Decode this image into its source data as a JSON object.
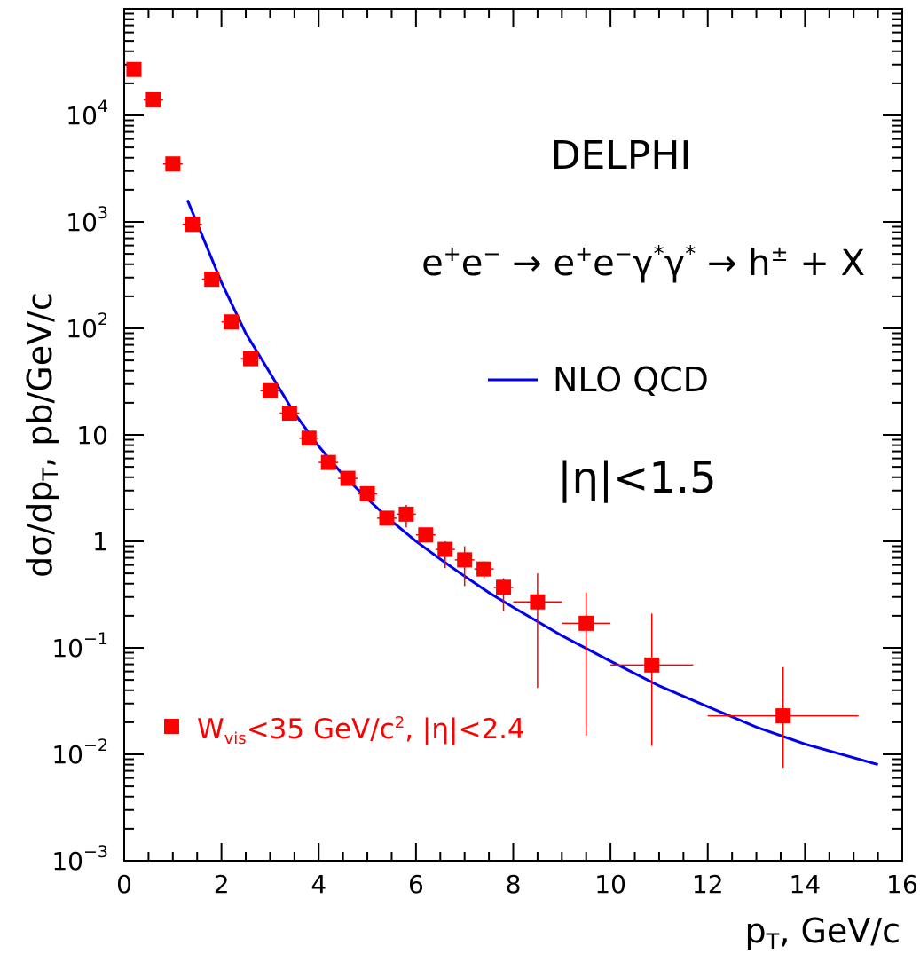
{
  "chart_data": {
    "type": "scatter",
    "title": "DELPHI",
    "process": {
      "parts": [
        {
          "t": "e",
          "s": "+"
        },
        {
          "t": "e",
          "s": "−"
        },
        {
          "t": " → "
        },
        {
          "t": "e",
          "s": "+"
        },
        {
          "t": "e",
          "s": "−"
        },
        {
          "t": "γ",
          "s": "*"
        },
        {
          "t": "γ",
          "s": "*"
        },
        {
          "t": " → h"
        },
        {
          "t": "",
          "s": "±"
        },
        {
          "t": " + X"
        }
      ]
    },
    "eta_cut": "|η|<1.5",
    "xlabel": {
      "main": "p",
      "sub": "T",
      "rest": ", GeV/c"
    },
    "ylabel": {
      "pre": "dσ/dp",
      "sub": "T",
      "rest": ", pb/GeV/c"
    },
    "xlim": [
      0,
      16
    ],
    "ylim": [
      0.001,
      100000
    ],
    "y_scale": "log",
    "x_ticks": [
      "0",
      "2",
      "4",
      "6",
      "8",
      "10",
      "12",
      "14",
      "16"
    ],
    "y_ticks": [
      {
        "value": 0.001,
        "base": "10",
        "exp": "−3"
      },
      {
        "value": 0.01,
        "base": "10",
        "exp": "−2"
      },
      {
        "value": 0.1,
        "base": "10",
        "exp": "−1"
      },
      {
        "value": 1,
        "base": "1",
        "exp": ""
      },
      {
        "value": 10,
        "base": "10",
        "exp": ""
      },
      {
        "value": 100,
        "base": "10",
        "exp": "2"
      },
      {
        "value": 1000,
        "base": "10",
        "exp": "3"
      },
      {
        "value": 10000,
        "base": "10",
        "exp": "4"
      }
    ],
    "legend": {
      "theory": "NLO QCD",
      "data": {
        "W": "W",
        "sub": "vis",
        "rest1": "<35 GeV/c",
        "sup": "2",
        "rest2": ", |η|<2.4"
      }
    },
    "series": [
      {
        "name": "data",
        "color": "#ff0000",
        "points": [
          {
            "x": 0.2,
            "y": 27000,
            "xerr": 0.1,
            "ylo": 27000,
            "yhi": 27000
          },
          {
            "x": 0.6,
            "y": 14000,
            "xerr": 0.2,
            "ylo": 14000,
            "yhi": 14000
          },
          {
            "x": 1.0,
            "y": 3500,
            "xerr": 0.2,
            "ylo": 3500,
            "yhi": 3500
          },
          {
            "x": 1.4,
            "y": 950,
            "xerr": 0.2,
            "ylo": 950,
            "yhi": 950
          },
          {
            "x": 1.8,
            "y": 290,
            "xerr": 0.2,
            "ylo": 250,
            "yhi": 330
          },
          {
            "x": 2.2,
            "y": 115,
            "xerr": 0.2,
            "ylo": 110,
            "yhi": 120
          },
          {
            "x": 2.6,
            "y": 52,
            "xerr": 0.2,
            "ylo": 50,
            "yhi": 54
          },
          {
            "x": 3.0,
            "y": 26,
            "xerr": 0.2,
            "ylo": 25,
            "yhi": 27
          },
          {
            "x": 3.4,
            "y": 16,
            "xerr": 0.2,
            "ylo": 15,
            "yhi": 17
          },
          {
            "x": 3.8,
            "y": 9.3,
            "xerr": 0.2,
            "ylo": 8.5,
            "yhi": 10
          },
          {
            "x": 4.2,
            "y": 5.5,
            "xerr": 0.2,
            "ylo": 5.0,
            "yhi": 6.0
          },
          {
            "x": 4.6,
            "y": 3.9,
            "xerr": 0.2,
            "ylo": 3.5,
            "yhi": 4.3
          },
          {
            "x": 5.0,
            "y": 2.8,
            "xerr": 0.2,
            "ylo": 2.5,
            "yhi": 3.1
          },
          {
            "x": 5.4,
            "y": 1.65,
            "xerr": 0.2,
            "ylo": 1.45,
            "yhi": 1.85
          },
          {
            "x": 5.8,
            "y": 1.8,
            "xerr": 0.2,
            "ylo": 1.35,
            "yhi": 2.2
          },
          {
            "x": 6.2,
            "y": 1.15,
            "xerr": 0.2,
            "ylo": 1.0,
            "yhi": 1.3
          },
          {
            "x": 6.6,
            "y": 0.84,
            "xerr": 0.2,
            "ylo": 0.56,
            "yhi": 1.0
          },
          {
            "x": 7.0,
            "y": 0.67,
            "xerr": 0.2,
            "ylo": 0.38,
            "yhi": 0.9
          },
          {
            "x": 7.4,
            "y": 0.55,
            "xerr": 0.2,
            "ylo": 0.45,
            "yhi": 0.65
          },
          {
            "x": 7.8,
            "y": 0.37,
            "xerr": 0.2,
            "ylo": 0.22,
            "yhi": 0.45
          },
          {
            "x": 8.5,
            "y": 0.27,
            "xerr": 0.5,
            "ylo": 0.042,
            "yhi": 0.5
          },
          {
            "x": 9.5,
            "y": 0.17,
            "xerr": 0.5,
            "ylo": 0.015,
            "yhi": 0.33
          },
          {
            "x": 10.85,
            "y": 0.069,
            "xerr": 0.85,
            "ylo": 0.012,
            "yhi": 0.21
          },
          {
            "x": 13.55,
            "y": 0.023,
            "xerr": 1.55,
            "ylo": 0.0075,
            "yhi": 0.066
          }
        ]
      },
      {
        "name": "NLO QCD",
        "color": "#0000ee",
        "curve": [
          {
            "x": 1.3,
            "y": 1600
          },
          {
            "x": 1.6,
            "y": 750
          },
          {
            "x": 2.0,
            "y": 270
          },
          {
            "x": 2.5,
            "y": 90
          },
          {
            "x": 3.0,
            "y": 38
          },
          {
            "x": 3.5,
            "y": 16
          },
          {
            "x": 4.0,
            "y": 7.8
          },
          {
            "x": 4.5,
            "y": 4.2
          },
          {
            "x": 5.0,
            "y": 2.5
          },
          {
            "x": 5.5,
            "y": 1.55
          },
          {
            "x": 6.0,
            "y": 1.0
          },
          {
            "x": 6.5,
            "y": 0.68
          },
          {
            "x": 7.0,
            "y": 0.47
          },
          {
            "x": 7.5,
            "y": 0.33
          },
          {
            "x": 8.0,
            "y": 0.24
          },
          {
            "x": 9.0,
            "y": 0.13
          },
          {
            "x": 10.0,
            "y": 0.075
          },
          {
            "x": 11.0,
            "y": 0.044
          },
          {
            "x": 12.0,
            "y": 0.028
          },
          {
            "x": 13.0,
            "y": 0.018
          },
          {
            "x": 14.0,
            "y": 0.0125
          },
          {
            "x": 15.0,
            "y": 0.0093
          },
          {
            "x": 15.5,
            "y": 0.008
          }
        ]
      }
    ]
  }
}
